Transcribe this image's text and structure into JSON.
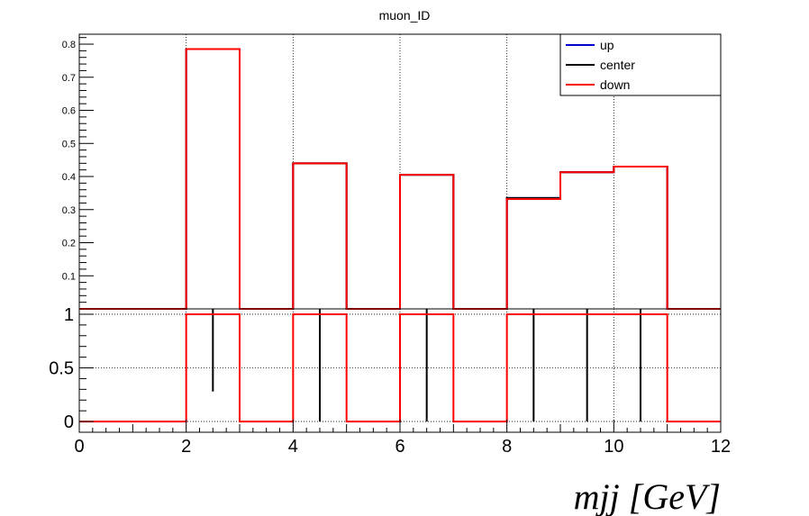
{
  "chart_data": {
    "type": "histogram",
    "title": "muon_ID",
    "xlabel": "mjj [GeV]",
    "xlim": [
      0,
      12
    ],
    "bin_edges": [
      0,
      1,
      2,
      3,
      4,
      5,
      6,
      7,
      8,
      9,
      10,
      11,
      12
    ],
    "legend": {
      "placement": "top-right",
      "entries": [
        {
          "name": "up",
          "color": "#0000cc"
        },
        {
          "name": "center",
          "color": "#000000"
        },
        {
          "name": "down",
          "color": "#ff0000"
        }
      ]
    },
    "top_panel": {
      "ylim": [
        0,
        0.83
      ],
      "yticks": [
        {
          "value": 0.1,
          "label": "0.1"
        },
        {
          "value": 0.2,
          "label": "0.2"
        },
        {
          "value": 0.3,
          "label": "0.3"
        },
        {
          "value": 0.4,
          "label": "0.4"
        },
        {
          "value": 0.5,
          "label": "0.5"
        },
        {
          "value": 0.6,
          "label": "0.6"
        },
        {
          "value": 0.7,
          "label": "0.7"
        },
        {
          "value": 0.8,
          "label": "0.8"
        }
      ],
      "series": [
        {
          "name": "up",
          "values": [
            0,
            0,
            0.785,
            0,
            0.44,
            0,
            0.405,
            0,
            0.335,
            0.413,
            0.43,
            0
          ]
        },
        {
          "name": "center",
          "values": [
            0,
            0,
            0.785,
            0,
            0.44,
            0,
            0.405,
            0,
            0.335,
            0.413,
            0.43,
            0
          ]
        },
        {
          "name": "down",
          "values": [
            0,
            0,
            0.785,
            0,
            0.44,
            0,
            0.405,
            0,
            0.332,
            0.413,
            0.43,
            0
          ]
        }
      ],
      "grid": true
    },
    "ratio_panel": {
      "ylim": [
        -0.1,
        1.05
      ],
      "yticks": [
        {
          "value": 0,
          "label": "0"
        },
        {
          "value": 0.5,
          "label": "0.5"
        },
        {
          "value": 1,
          "label": "1"
        }
      ],
      "down_ratio": [
        0,
        0,
        1,
        0,
        1,
        0,
        1,
        0,
        1,
        1,
        1,
        0
      ],
      "center_error_bars": [
        {
          "x": 2.5,
          "low": 0.28,
          "high": 1.05
        },
        {
          "x": 4.5,
          "low": 0,
          "high": 1.05
        },
        {
          "x": 6.5,
          "low": 0,
          "high": 1.05
        },
        {
          "x": 8.5,
          "low": 0,
          "high": 1.05
        },
        {
          "x": 9.5,
          "low": 0,
          "high": 1.05
        },
        {
          "x": 10.5,
          "low": 0,
          "high": 1.05
        }
      ],
      "grid": true
    },
    "xticks": [
      {
        "value": 0,
        "label": "0"
      },
      {
        "value": 2,
        "label": "2"
      },
      {
        "value": 4,
        "label": "4"
      },
      {
        "value": 6,
        "label": "6"
      },
      {
        "value": 8,
        "label": "8"
      },
      {
        "value": 10,
        "label": "10"
      },
      {
        "value": 12,
        "label": "12"
      }
    ]
  }
}
